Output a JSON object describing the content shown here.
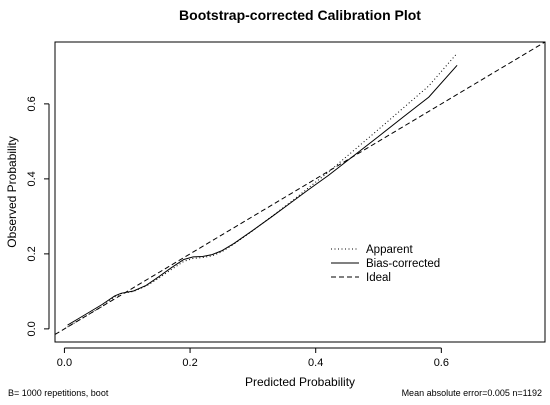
{
  "chart_data": {
    "type": "line",
    "title": "Bootstrap-corrected Calibration Plot",
    "xlabel": "Predicted Probability",
    "ylabel": "Observed Probability",
    "xlim": [
      -0.015,
      0.765
    ],
    "ylim": [
      -0.035,
      0.765
    ],
    "x_ticks": [
      0.0,
      0.2,
      0.4,
      0.6
    ],
    "y_ticks": [
      0.0,
      0.2,
      0.4,
      0.6
    ],
    "x_tick_labels": [
      "0.0",
      "0.2",
      "0.4",
      "0.6"
    ],
    "y_tick_labels": [
      "0.0",
      "0.2",
      "0.4",
      "0.6"
    ],
    "grid": false,
    "legend_position": "right-center",
    "series": [
      {
        "name": "Apparent",
        "style": "dotted",
        "x": [
          0.005,
          0.02,
          0.04,
          0.06,
          0.08,
          0.09,
          0.11,
          0.13,
          0.15,
          0.17,
          0.19,
          0.205,
          0.22,
          0.235,
          0.25,
          0.27,
          0.3,
          0.33,
          0.36,
          0.39,
          0.42,
          0.46,
          0.5,
          0.54,
          0.58,
          0.625
        ],
        "y": [
          0.005,
          0.02,
          0.04,
          0.06,
          0.085,
          0.094,
          0.1,
          0.114,
          0.135,
          0.158,
          0.18,
          0.188,
          0.19,
          0.195,
          0.205,
          0.226,
          0.262,
          0.3,
          0.338,
          0.378,
          0.418,
          0.475,
          0.532,
          0.59,
          0.648,
          0.735
        ]
      },
      {
        "name": "Bias-corrected",
        "style": "solid",
        "x": [
          0.005,
          0.02,
          0.04,
          0.06,
          0.08,
          0.09,
          0.11,
          0.13,
          0.15,
          0.17,
          0.19,
          0.205,
          0.22,
          0.235,
          0.25,
          0.27,
          0.3,
          0.33,
          0.36,
          0.39,
          0.42,
          0.46,
          0.5,
          0.54,
          0.58,
          0.625
        ],
        "y": [
          0.01,
          0.025,
          0.045,
          0.065,
          0.088,
          0.095,
          0.101,
          0.116,
          0.139,
          0.163,
          0.185,
          0.192,
          0.193,
          0.198,
          0.208,
          0.228,
          0.263,
          0.299,
          0.336,
          0.373,
          0.409,
          0.461,
          0.513,
          0.566,
          0.618,
          0.703
        ]
      },
      {
        "name": "Ideal",
        "style": "dashed",
        "x": [
          -0.015,
          0.765
        ],
        "y": [
          -0.015,
          0.765
        ]
      }
    ],
    "footer_left": "B= 1000 repetitions, boot",
    "footer_right": "Mean absolute error=0.005 n=1192"
  }
}
